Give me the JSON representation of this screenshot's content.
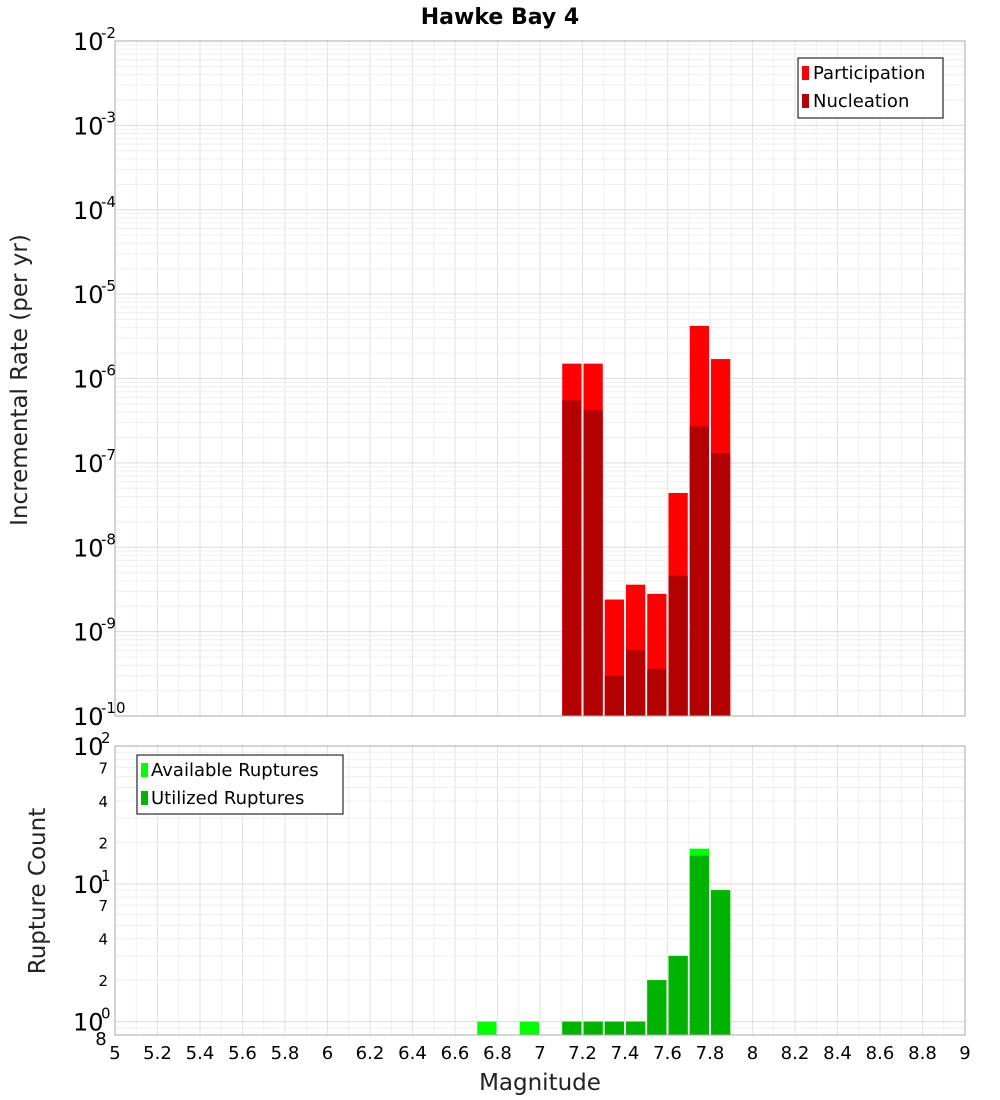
{
  "chart_data": [
    {
      "type": "bar",
      "title": "Hawke Bay 4",
      "xlabel": "Magnitude",
      "ylabel": "Incremental Rate (per yr)",
      "yscale": "log",
      "ylim": [
        1e-10,
        0.01
      ],
      "xlim": [
        5,
        9
      ],
      "stacked_overlay": true,
      "y_ticks": [
        {
          "base": "10",
          "exp": "-10",
          "value": 1e-10
        },
        {
          "base": "10",
          "exp": "-9",
          "value": 1e-09
        },
        {
          "base": "10",
          "exp": "-8",
          "value": 1e-08
        },
        {
          "base": "10",
          "exp": "-7",
          "value": 1e-07
        },
        {
          "base": "10",
          "exp": "-6",
          "value": 1e-06
        },
        {
          "base": "10",
          "exp": "-5",
          "value": 1e-05
        },
        {
          "base": "10",
          "exp": "-4",
          "value": 0.0001
        },
        {
          "base": "10",
          "exp": "-3",
          "value": 0.001
        },
        {
          "base": "10",
          "exp": "-2",
          "value": 0.01
        }
      ],
      "x": [
        7.15,
        7.25,
        7.35,
        7.45,
        7.55,
        7.65,
        7.75,
        7.85
      ],
      "bin_width": 0.1,
      "series": [
        {
          "name": "Participation",
          "color": "#ff0000",
          "values": [
            1.5e-06,
            1.5e-06,
            2.4e-09,
            3.6e-09,
            2.8e-09,
            4.4e-08,
            4.2e-06,
            1.7e-06
          ]
        },
        {
          "name": "Nucleation",
          "color": "#b30000",
          "values": [
            5.5e-07,
            4.2e-07,
            3e-10,
            6e-10,
            3.6e-10,
            4.6e-09,
            2.7e-07,
            1.3e-07
          ]
        }
      ],
      "legend": [
        {
          "label": "Participation",
          "color": "#ff0000"
        },
        {
          "label": "Nucleation",
          "color": "#b30000"
        }
      ],
      "legend_position": "top-right"
    },
    {
      "type": "bar",
      "title": "",
      "xlabel": "Magnitude",
      "ylabel": "Rupture Count",
      "yscale": "log",
      "ylim": [
        0.8,
        100
      ],
      "xlim": [
        5,
        9
      ],
      "x_ticks": [
        "5",
        "5.2",
        "5.4",
        "5.6",
        "5.8",
        "6",
        "6.2",
        "6.4",
        "6.6",
        "6.8",
        "7",
        "7.2",
        "7.4",
        "7.6",
        "7.8",
        "8",
        "8.2",
        "8.4",
        "8.6",
        "8.8",
        "9"
      ],
      "major_y_ticks": [
        {
          "base": "10",
          "exp": "0",
          "value": 1
        },
        {
          "base": "10",
          "exp": "1",
          "value": 10
        },
        {
          "base": "10",
          "exp": "2",
          "value": 100
        }
      ],
      "minor_y_ticks": [
        {
          "label": "8",
          "value": 0.8
        },
        {
          "label": "2",
          "value": 2
        },
        {
          "label": "4",
          "value": 4
        },
        {
          "label": "7",
          "value": 7
        },
        {
          "label": "2",
          "value": 20
        },
        {
          "label": "4",
          "value": 40
        },
        {
          "label": "7",
          "value": 70
        }
      ],
      "x": [
        6.75,
        6.95,
        7.15,
        7.25,
        7.35,
        7.45,
        7.55,
        7.65,
        7.75,
        7.85
      ],
      "bin_width": 0.1,
      "series": [
        {
          "name": "Available Ruptures",
          "color": "#00ff00",
          "values": [
            1,
            1,
            1,
            1,
            1,
            1,
            2,
            3,
            18,
            9
          ]
        },
        {
          "name": "Utilized Ruptures",
          "color": "#00b300",
          "values": [
            0,
            0,
            1,
            1,
            1,
            1,
            2,
            3,
            16,
            9
          ]
        }
      ],
      "legend": [
        {
          "label": "Available Ruptures",
          "color": "#00ff00"
        },
        {
          "label": "Utilized Ruptures",
          "color": "#00b300"
        }
      ],
      "legend_position": "top-left"
    }
  ]
}
